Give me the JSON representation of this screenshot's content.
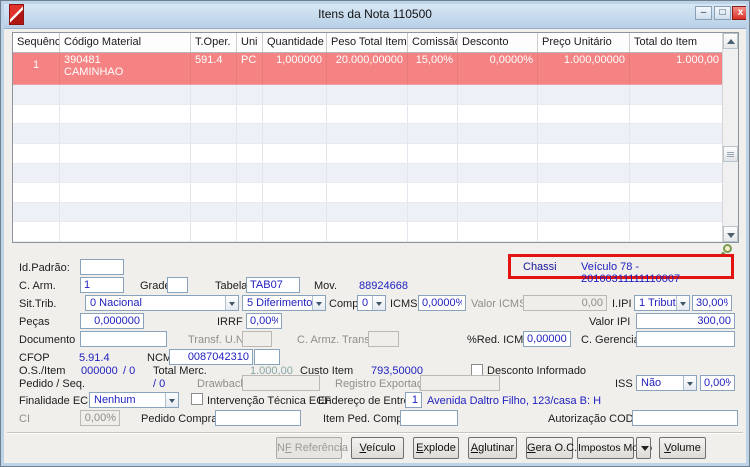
{
  "window": {
    "title": "Itens da Nota 110500",
    "minimize_glyph": "–",
    "maximize_glyph": "□",
    "close_glyph": "x"
  },
  "colors": {
    "selected_row": "#f58383",
    "value_blue": "#2121c0",
    "annotation_red": "#e31312",
    "teal_value": "#87a6a6",
    "titlebar_blue": "#b7cfe6"
  },
  "grid": {
    "columns": [
      "Sequência",
      "Código Material",
      "T.Oper.",
      "Uni",
      "Quantidade",
      "Peso Total Item",
      "Comissão",
      "Desconto",
      "Preço Unitário",
      "Total do Item"
    ],
    "selected_row": {
      "sequencia": "1",
      "codigo_material": "390481",
      "codigo_material_desc": "CAMINHAO",
      "t_oper": "591.4",
      "uni": "PC",
      "quantidade": "1,000000",
      "peso_total_item": "20.000,00000",
      "comissao": "15,00%",
      "desconto": "0,0000%",
      "preco_unitario": "1.000,00000",
      "total_do_item": "1.000,00"
    }
  },
  "annotation": {
    "chassi_label": "Chassi",
    "chassi_value": "Veículo 78 - 20160311111110007"
  },
  "form": {
    "id_padrao": {
      "label": "Id.Padrão:",
      "value": ""
    },
    "c_arm": {
      "label": "C. Arm.",
      "value": "1"
    },
    "grade": {
      "label": "Grade",
      "value": ""
    },
    "tabela": {
      "label": "Tabela",
      "value": "TAB07"
    },
    "mov": {
      "label": "Mov.",
      "value": "88924668"
    },
    "sit_trib": {
      "label": "Sit.Trib.",
      "value1": "0 Nacional",
      "value2": "5 Diferimento"
    },
    "compl": {
      "label": "Compl",
      "value": "0"
    },
    "icms": {
      "label": "ICMS",
      "value": "0,0000%"
    },
    "valor_icms": {
      "label": "Valor ICMS",
      "value": "0,00"
    },
    "iipi": {
      "label": "I.IPI",
      "value": "1 Tribut.",
      "percent": "30,00%"
    },
    "pecas": {
      "label": "Peças",
      "value": "0,000000"
    },
    "irrf": {
      "label": "IRRF",
      "value": "0,00%"
    },
    "valor_ipi": {
      "label": "Valor IPI",
      "value": "300,00"
    },
    "documento": {
      "label": "Documento",
      "value": ""
    },
    "transf_un": {
      "label": "Transf. U.N.",
      "value": ""
    },
    "c_armz_transf": {
      "label": "C. Armz. Transf.",
      "value": ""
    },
    "red_icms": {
      "label": "%Red. ICMS",
      "value": "0,00000%"
    },
    "c_gerencial": {
      "label": "C. Gerencial",
      "value": ""
    },
    "cfop": {
      "label": "CFOP",
      "value": "5.91.4"
    },
    "ncm": {
      "label": "NCM",
      "value": "0087042310",
      "extra": ""
    },
    "os_item": {
      "label": "O.S./Item",
      "value": "000000",
      "seq": "/ 0"
    },
    "total_merc": {
      "label": "Total Merc.",
      "value": "1.000,00"
    },
    "custo_item": {
      "label": "Custo Item",
      "value": "793,50000"
    },
    "desconto_informado": {
      "label": "Desconto Informado"
    },
    "pedido_seq": {
      "label": "Pedido / Seq.",
      "value": "/ 0"
    },
    "drawback": {
      "label": "Drawback",
      "value": ""
    },
    "registro_exportacao": {
      "label": "Registro Exportação",
      "value": ""
    },
    "iss": {
      "label": "ISS",
      "value": "Não",
      "percent": "0,00%"
    },
    "finalidade_ecf": {
      "label": "Finalidade ECF",
      "value": "Nenhum"
    },
    "intervencao": {
      "label": "Intervenção Técnica ECF"
    },
    "endereco_entrega": {
      "label": "Endereço de Entrega",
      "value": "1",
      "address": "Avenida Daltro Filho, 123/casa B: H"
    },
    "ci": {
      "label": "CI",
      "value": "0,00%"
    },
    "pedido_compra": {
      "label": "Pedido Compra",
      "value": ""
    },
    "item_ped_compra": {
      "label": "Item Ped. Compra",
      "value": ""
    },
    "autorizacao_codif": {
      "label": "Autorização CODIF",
      "value": ""
    }
  },
  "buttons": {
    "nf_referencia": {
      "pre": "N",
      "accel": "F",
      "post": " Referência"
    },
    "veiculo": {
      "pre": "",
      "accel": "V",
      "post": "eículo"
    },
    "explode": {
      "pre": "",
      "accel": "E",
      "post": "xplode"
    },
    "aglutinar": {
      "pre": "",
      "accel": "A",
      "post": "glutinar"
    },
    "gera_oc": {
      "pre": "",
      "accel": "G",
      "post": "era O.C."
    },
    "impostos_movto": {
      "pre": "Impostos Movto",
      "accel": "",
      "post": ""
    },
    "volume": {
      "pre": "",
      "accel": "V",
      "post": "olume"
    }
  }
}
